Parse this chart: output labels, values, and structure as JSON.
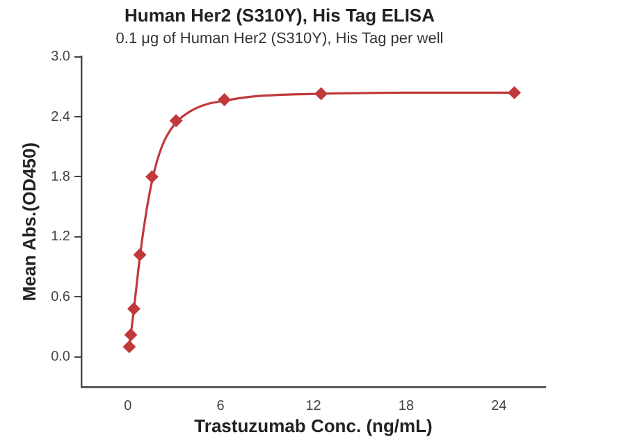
{
  "chart_data": {
    "type": "scatter",
    "title": "Human Her2 (S310Y), His Tag ELISA",
    "subtitle": "0.1 μg of Human Her2 (S310Y), His Tag per well",
    "xlabel": "Trastuzumab Conc. (ng/mL)",
    "ylabel": "Mean Abs.(OD450)",
    "series": [
      {
        "type": "line",
        "color": "#c0393b",
        "marker": "none",
        "x": [
          0.1,
          0.4,
          0.8,
          1.2,
          1.6,
          2.2,
          3.0,
          4.0,
          5.0,
          6.25,
          8,
          10,
          12.5,
          18,
          25
        ],
        "values": [
          0.1,
          0.48,
          1.02,
          1.45,
          1.78,
          2.1,
          2.32,
          2.45,
          2.52,
          2.56,
          2.6,
          2.62,
          2.63,
          2.64,
          2.64
        ]
      },
      {
        "type": "scatter",
        "color": "#c0393b",
        "marker": "diamond",
        "x": [
          0.098,
          0.195,
          0.39,
          0.78,
          1.5625,
          3.125,
          6.25,
          12.5,
          25
        ],
        "values": [
          0.1,
          0.22,
          0.48,
          1.02,
          1.8,
          2.36,
          2.57,
          2.63,
          2.64
        ]
      }
    ],
    "xlim": [
      -3,
      27
    ],
    "xticks": [
      0,
      6,
      12,
      18,
      24
    ],
    "ylim": [
      -0.3,
      3.0
    ],
    "yticks": [
      {
        "value": 0,
        "label": "0.0"
      },
      0.6,
      1.2,
      1.8,
      2.4,
      {
        "value": 3,
        "label": "3.0"
      }
    ],
    "grid": false,
    "legend": false
  }
}
